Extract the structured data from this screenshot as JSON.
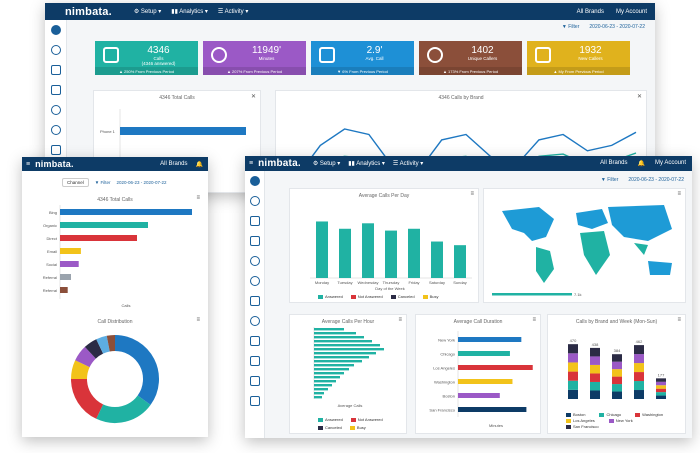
{
  "brand": "nimbata.",
  "menu": {
    "setup": "Setup",
    "analytics": "Analytics",
    "activity": "Activity"
  },
  "all_brands": "All Brands",
  "my_account": "My Account",
  "filter": "Filter",
  "date_range": "2020-06-23 - 2020-07-22",
  "channel": "Channel",
  "back": {
    "stats": [
      {
        "value": "4346",
        "label": "Calls",
        "sub": "(4346 answered)",
        "foot": "▲ 250% From Previous Period",
        "color": "#20b2a3"
      },
      {
        "value": "11949'",
        "label": "Minutes",
        "sub": "",
        "foot": "▲ 207% From Previous Period",
        "color": "#9b59c6"
      },
      {
        "value": "2.9'",
        "label": "Avg. Call",
        "sub": "",
        "foot": "▼ 6% From Previous Period",
        "color": "#1e90d6"
      },
      {
        "value": "1402",
        "label": "Unique Callers",
        "sub": "",
        "foot": "▲ 173% From Previous Period",
        "color": "#8b4f3a"
      },
      {
        "value": "1932",
        "label": "New Callers",
        "sub": "",
        "foot": "▲ My From Previous Period",
        "color": "#e0b21d"
      }
    ],
    "total_calls_title": "4346 Total Calls",
    "calls_by_brand_title": "4346 Calls by Brand"
  },
  "left": {
    "total_calls_title": "4346 Total Calls",
    "bar_labels": [
      "Bing",
      "Organic",
      "Direct",
      "Email",
      "Social",
      "Referral",
      "Referral"
    ],
    "x_label": "Calls",
    "y_label": "Source",
    "distribution_title": "Call Distribution"
  },
  "front": {
    "avg_per_day_title": "Average Calls Per Day",
    "day_labels": [
      "Monday",
      "Tuesday",
      "Wednesday",
      "Thursday",
      "Friday",
      "Saturday",
      "Sunday"
    ],
    "day_axis": "Day of the Week",
    "y_axis": "Average Calls",
    "legend": [
      "Answered",
      "Not Answered",
      "Canceled",
      "Busy"
    ],
    "map_range_max": "7.1k",
    "avg_per_hour_title": "Average Calls Per Hour",
    "hour_axis": "Average Calls",
    "avg_duration_title": "Average Call Duration",
    "duration_labels": [
      "New York",
      "Chicago",
      "Los Angeles",
      "Washington",
      "Boston",
      "San Francisco"
    ],
    "duration_axis": "Minutes",
    "by_brand_title": "Calls by Brand and Week (Mon-Sun)",
    "brand_totals": [
      "470",
      "438",
      "384",
      "462",
      "177"
    ],
    "brand_legend": [
      "Boston",
      "Chicago",
      "Washington",
      "Los Angeles",
      "New York",
      "San Francisco"
    ]
  },
  "chart_data": [
    {
      "type": "line",
      "title": "4346 Calls by Brand",
      "series": [
        {
          "values": [
            10,
            40,
            55,
            50,
            20,
            15,
            45,
            50,
            30,
            20,
            45,
            50,
            35,
            40,
            52
          ]
        },
        {
          "values": [
            5,
            25,
            30,
            28,
            10,
            8,
            28,
            30,
            18,
            10,
            30,
            32,
            22,
            25,
            33
          ]
        },
        {
          "values": [
            3,
            10,
            12,
            11,
            5,
            4,
            10,
            12,
            8,
            5,
            12,
            13,
            9,
            10,
            13
          ]
        }
      ]
    },
    {
      "type": "bar",
      "title": "4346 Total Calls",
      "categories": [
        "Bing",
        "Organic",
        "Direct",
        "Email",
        "Social",
        "Referral",
        "Referral"
      ],
      "values": [
        240,
        160,
        140,
        38,
        34,
        20,
        14
      ]
    },
    {
      "type": "pie",
      "title": "Call Distribution",
      "values": [
        35,
        22,
        18,
        7,
        6,
        5,
        4,
        3
      ]
    },
    {
      "type": "bar",
      "title": "Average Calls Per Day",
      "categories": [
        "Monday",
        "Tuesday",
        "Wednesday",
        "Thursday",
        "Friday",
        "Saturday",
        "Sunday"
      ],
      "values": [
        155,
        135,
        150,
        130,
        135,
        100,
        90
      ]
    },
    {
      "type": "bar",
      "title": "Average Call Duration",
      "categories": [
        "New York",
        "Chicago",
        "Los Angeles",
        "Washington",
        "Boston",
        "San Francisco"
      ],
      "values": [
        50,
        41,
        59,
        43,
        33,
        54
      ]
    },
    {
      "type": "bar",
      "title": "Calls by Brand and Week (Mon-Sun)",
      "categories": [
        "W1",
        "W2",
        "W3",
        "W4",
        "W5"
      ],
      "values": [
        470,
        438,
        384,
        462,
        177
      ]
    }
  ],
  "colors": {
    "navy": "#0d3b66",
    "teal": "#20b2a3",
    "red": "#d9343a",
    "yellow": "#f2c31a",
    "purple": "#9b59c6",
    "blue": "#1e78c2",
    "dark": "#2b2b45",
    "brown": "#8b4f3a"
  }
}
